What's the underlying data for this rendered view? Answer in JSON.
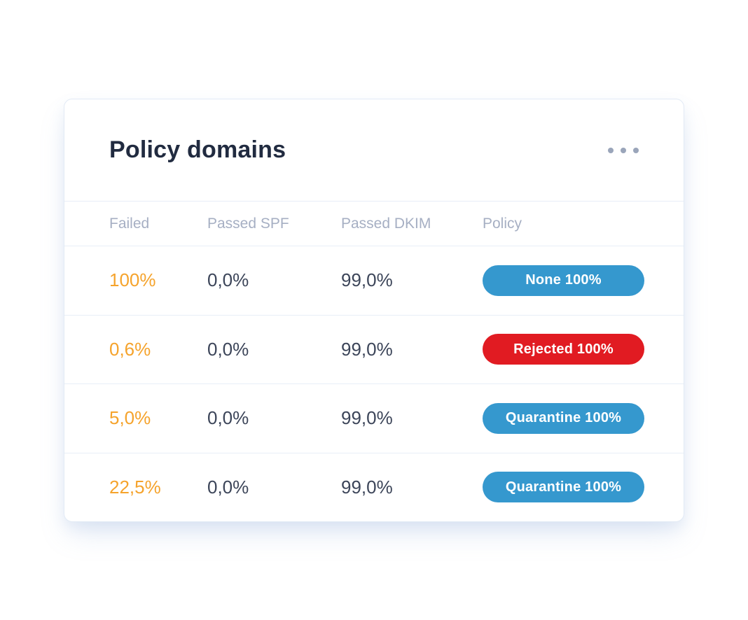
{
  "card": {
    "title": "Policy domains",
    "menu_icon": "ellipsis-icon",
    "columns": [
      "Failed",
      "Passed SPF",
      "Passed DKIM",
      "Policy"
    ],
    "rows": [
      {
        "failed": "100%",
        "spf": "0,0%",
        "dkim": "99,0%",
        "policy": "None 100%",
        "policy_type": "none"
      },
      {
        "failed": "0,6%",
        "spf": "0,0%",
        "dkim": "99,0%",
        "policy": "Rejected 100%",
        "policy_type": "rejected"
      },
      {
        "failed": "5,0%",
        "spf": "0,0%",
        "dkim": "99,0%",
        "policy": "Quarantine 100%",
        "policy_type": "quarantine"
      },
      {
        "failed": "22,5%",
        "spf": "0,0%",
        "dkim": "99,0%",
        "policy": "Quarantine 100%",
        "policy_type": "quarantine"
      }
    ],
    "colors": {
      "badge_blue": "#3598ce",
      "badge_red": "#e11b22",
      "badge_text": "#ffffff",
      "failed_orange": "#f5a32c",
      "title_text": "#212b40",
      "cell_text": "#3c4559",
      "header_text": "#a6afc3",
      "divider": "#e8eef7",
      "card_border": "#e2eaf5",
      "dots": "#9aa5ba"
    }
  }
}
